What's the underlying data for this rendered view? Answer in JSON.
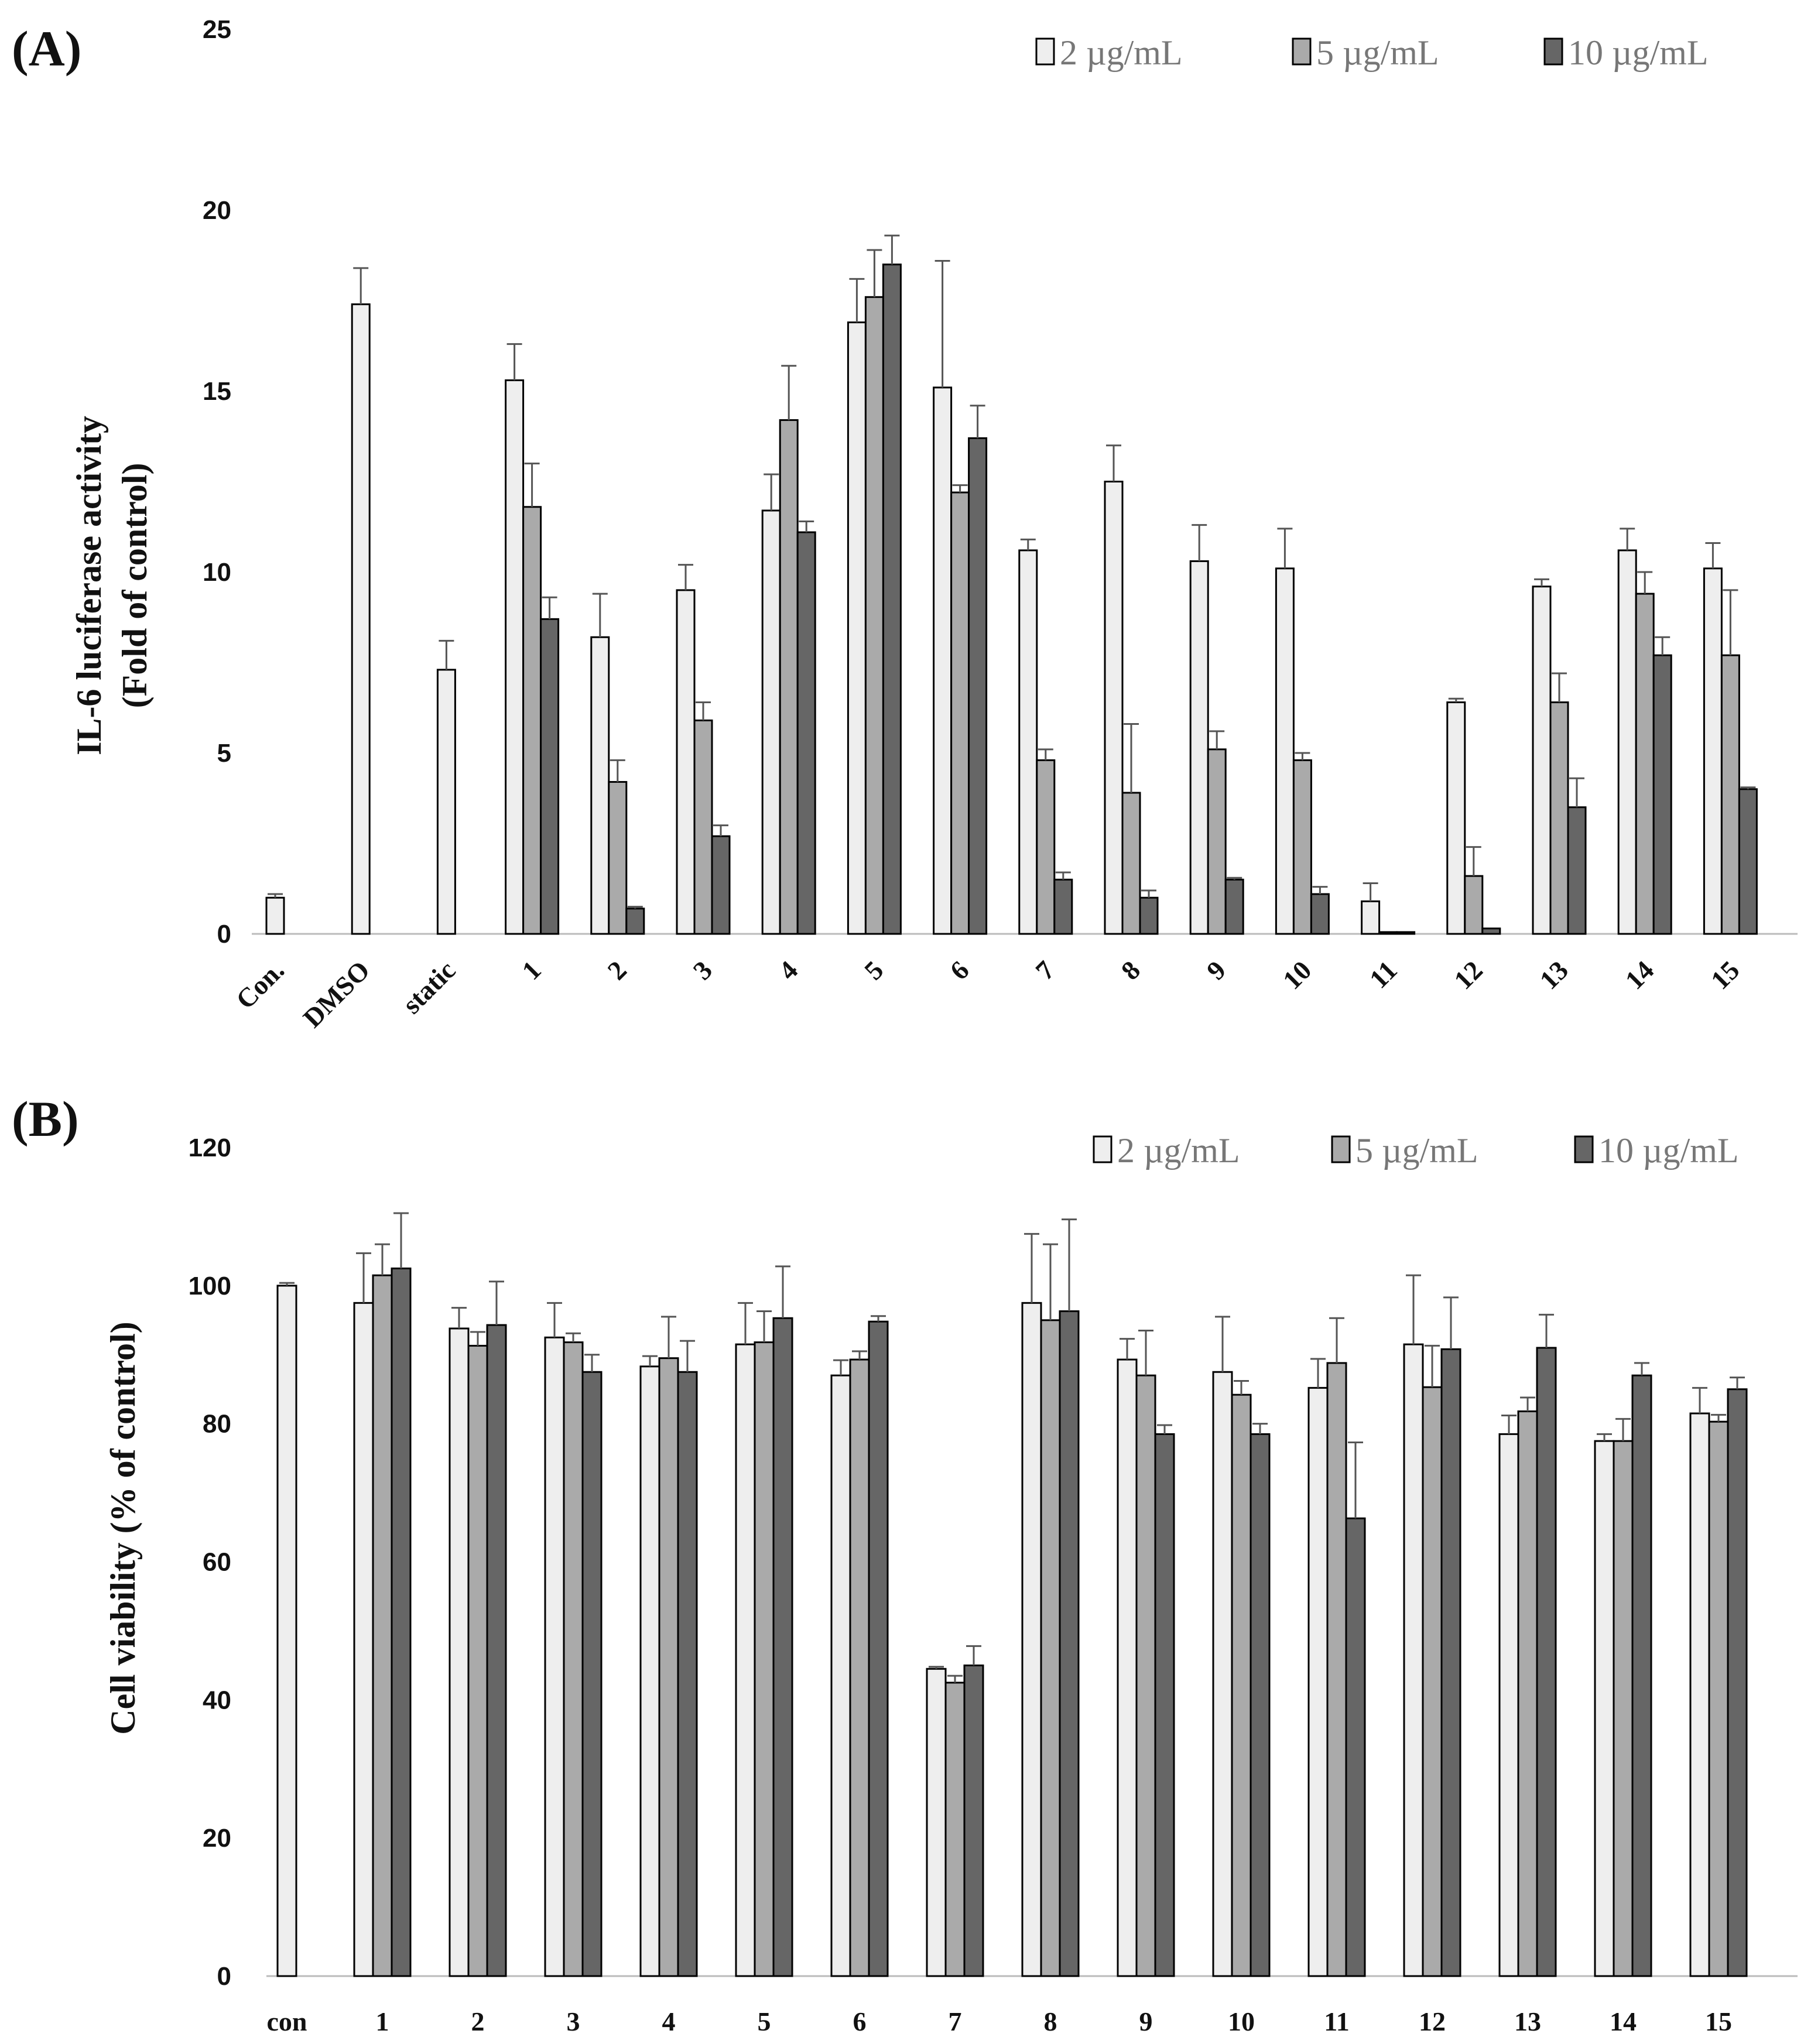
{
  "series_colors": [
    "#eeeeee",
    "#aaaaaa",
    "#666666"
  ],
  "chart_data": [
    {
      "panel": "(A)",
      "type": "bar",
      "ylabel_lines": [
        "IL-6 luciferase activity",
        "(Fold of control)"
      ],
      "ylim": [
        0,
        25
      ],
      "yticks": [
        "0",
        "5",
        "10",
        "15",
        "20",
        "25"
      ],
      "legend": [
        "2 µg/mL",
        "5 µg/mL",
        "10 µg/mL"
      ],
      "categories": [
        "Con.",
        "DMSO",
        "static",
        "1",
        "2",
        "3",
        "4",
        "5",
        "6",
        "7",
        "8",
        "9",
        "10",
        "11",
        "12",
        "13",
        "14",
        "15"
      ],
      "series": [
        {
          "name": "2 µg/mL",
          "values": [
            1.0,
            17.4,
            7.3,
            15.3,
            8.2,
            9.5,
            11.7,
            16.9,
            15.1,
            10.6,
            12.5,
            10.3,
            10.1,
            0.9,
            6.4,
            9.6,
            10.6,
            10.1
          ],
          "errors": [
            0.1,
            1.0,
            0.8,
            1.0,
            1.2,
            0.7,
            1.0,
            1.2,
            3.5,
            0.3,
            1.0,
            1.0,
            1.1,
            0.5,
            0.1,
            0.2,
            0.6,
            0.7
          ]
        },
        {
          "name": "5 µg/mL",
          "values": [
            null,
            null,
            null,
            11.8,
            4.2,
            5.9,
            14.2,
            17.6,
            12.2,
            4.8,
            3.9,
            5.1,
            4.8,
            0.05,
            1.6,
            6.4,
            9.4,
            7.7
          ],
          "errors": [
            null,
            null,
            null,
            1.2,
            0.6,
            0.5,
            1.5,
            1.3,
            0.2,
            0.3,
            1.9,
            0.5,
            0.2,
            0.0,
            0.8,
            0.8,
            0.6,
            1.8
          ]
        },
        {
          "name": "10 µg/mL",
          "values": [
            null,
            null,
            null,
            8.7,
            0.7,
            2.7,
            11.1,
            18.5,
            13.7,
            1.5,
            1.0,
            1.5,
            1.1,
            0.05,
            0.15,
            3.5,
            7.7,
            4.0
          ]
        },
        {
          "name": "_err10",
          "values": [
            null,
            null,
            null,
            0.6,
            0.05,
            0.3,
            0.3,
            0.8,
            0.9,
            0.2,
            0.2,
            0.05,
            0.2,
            0.0,
            0.0,
            0.8,
            0.5,
            0.05
          ]
        }
      ]
    },
    {
      "panel": "(B)",
      "type": "bar",
      "ylabel_lines": [
        "Cell viability  (% of control)"
      ],
      "ylim": [
        0,
        120
      ],
      "yticks": [
        "0",
        "20",
        "40",
        "60",
        "80",
        "100",
        "120"
      ],
      "legend": [
        "2 µg/mL",
        "5 µg/mL",
        "10 µg/mL"
      ],
      "categories": [
        "con",
        "1",
        "2",
        "3",
        "4",
        "5",
        "6",
        "7",
        "8",
        "9",
        "10",
        "11",
        "12",
        "13",
        "14",
        "15"
      ],
      "series": [
        {
          "name": "2 µg/mL",
          "values": [
            100,
            97.5,
            93.8,
            92.5,
            88.3,
            91.5,
            87,
            44.5,
            97.5,
            89.3,
            87.5,
            85.2,
            91.5,
            78.5,
            77.5,
            81.5
          ],
          "errors": [
            0.4,
            7.2,
            3.0,
            5.0,
            1.5,
            6.0,
            2.2,
            0.3,
            10.0,
            3.0,
            8.0,
            4.2,
            10.0,
            2.7,
            1.0,
            3.7
          ]
        },
        {
          "name": "5 µg/mL",
          "values": [
            null,
            101.5,
            91.3,
            91.8,
            89.5,
            91.8,
            89.3,
            42.5,
            95.0,
            87.0,
            84.2,
            88.8,
            85.3,
            81.8,
            77.5,
            80.3
          ],
          "errors": [
            null,
            4.5,
            2.0,
            1.3,
            6.0,
            4.5,
            1.2,
            1.0,
            11.0,
            6.5,
            2.0,
            6.5,
            6.0,
            2.0,
            3.2,
            1.0
          ]
        },
        {
          "name": "10 µg/mL",
          "values": [
            null,
            102.5,
            94.3,
            87.5,
            87.5,
            95.3,
            94.8,
            45.0,
            96.3,
            78.5,
            78.5,
            66.3,
            90.8,
            91.0,
            87.0,
            85.0
          ],
          "errors": [
            null,
            8.0,
            6.3,
            2.5,
            4.5,
            7.5,
            0.8,
            2.8,
            13.3,
            1.3,
            1.5,
            11.0,
            7.5,
            4.8,
            1.8,
            1.7
          ]
        }
      ]
    }
  ]
}
